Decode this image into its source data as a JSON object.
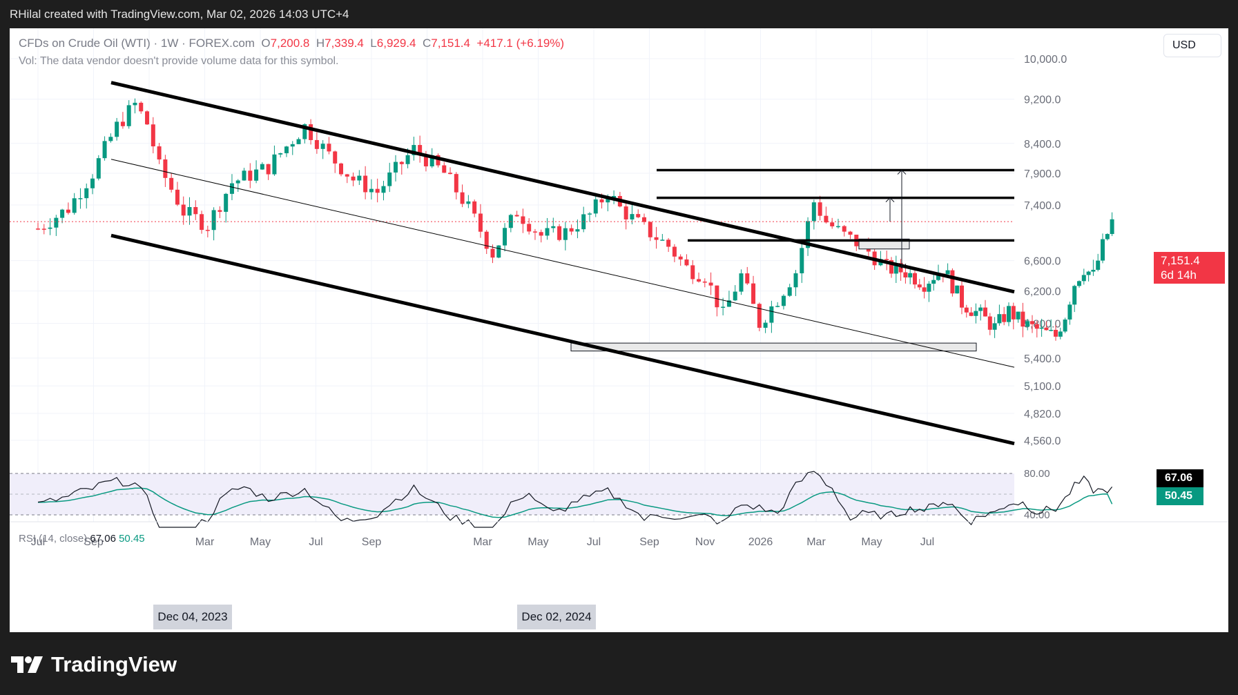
{
  "caption": "RHilal created with TradingView.com, Mar 02, 2026 14:03 UTC+4",
  "legend": {
    "symbol": "CFDs on Crude Oil (WTI)",
    "interval": "1W",
    "source": "FOREX.com",
    "o_label": "O",
    "o": "7,200.8",
    "h_label": "H",
    "h": "7,339.4",
    "l_label": "L",
    "l": "6,929.4",
    "c_label": "C",
    "c": "7,151.4",
    "change": "+417.1 (+6.19%)",
    "volume_note": "Vol: The data vendor doesn't provide volume data for this symbol."
  },
  "currency": "USD",
  "price_badge": {
    "price": "7,151.4",
    "countdown": "6d 14h",
    "color": "#f23645"
  },
  "rsi": {
    "label": "RSI (14, close)",
    "value": "67.06",
    "ma_value": "50.45",
    "scale": [
      "80.00",
      "40.00"
    ],
    "line_color": "#131722",
    "ma_color": "#089981",
    "band_fill": "#f0eefa"
  },
  "highlighted_dates": [
    "Dec 04, 2023",
    "Dec 02, 2024"
  ],
  "footer_brand": "TradingView",
  "colors": {
    "up": "#089981",
    "down": "#f23645",
    "background": "#ffffff",
    "frame": "#1e1e1e"
  },
  "chart_data": {
    "type": "candlestick",
    "title": "CFDs on Crude Oil (WTI) · 1W · FOREX.com",
    "y_scale": "log",
    "ylim": [
      4400,
      10300
    ],
    "y_ticks": [
      "10,000.0",
      "9,200.0",
      "8,400.0",
      "7,900.0",
      "7,400.0",
      "6,600.0",
      "6,200.0",
      "5,800.0",
      "5,400.0",
      "5,100.0",
      "4,820.0",
      "4,560.0"
    ],
    "x_ticks": [
      "Jul",
      "Sep",
      "Dec 04, 2023",
      "Mar",
      "May",
      "Jul",
      "Sep",
      "Dec 02, 2024",
      "Mar",
      "May",
      "Jul",
      "Sep",
      "Nov",
      "2026",
      "Mar",
      "May",
      "Jul"
    ],
    "last_close": 7151.4,
    "grid": true,
    "horizontal_levels": [
      7950,
      7510,
      6880
    ],
    "demand_zones": [
      {
        "from": 5480,
        "to": 5570,
        "start": "Mar 2025",
        "end": "Jun 2026"
      },
      {
        "from": 6760,
        "to": 6900,
        "start": "Feb 2026",
        "end": "Mar 2026"
      }
    ],
    "channel": {
      "upper": [
        {
          "date": "Sep 2023",
          "price": 9520
        },
        {
          "date": "Jul 2026",
          "price": 6190
        }
      ],
      "middle": [
        {
          "date": "Sep 2023",
          "price": 8130
        },
        {
          "date": "Jul 2026",
          "price": 5300
        }
      ],
      "lower": [
        {
          "date": "Sep 2023",
          "price": 6950
        },
        {
          "date": "Jul 2026",
          "price": 4530
        }
      ]
    }
  }
}
